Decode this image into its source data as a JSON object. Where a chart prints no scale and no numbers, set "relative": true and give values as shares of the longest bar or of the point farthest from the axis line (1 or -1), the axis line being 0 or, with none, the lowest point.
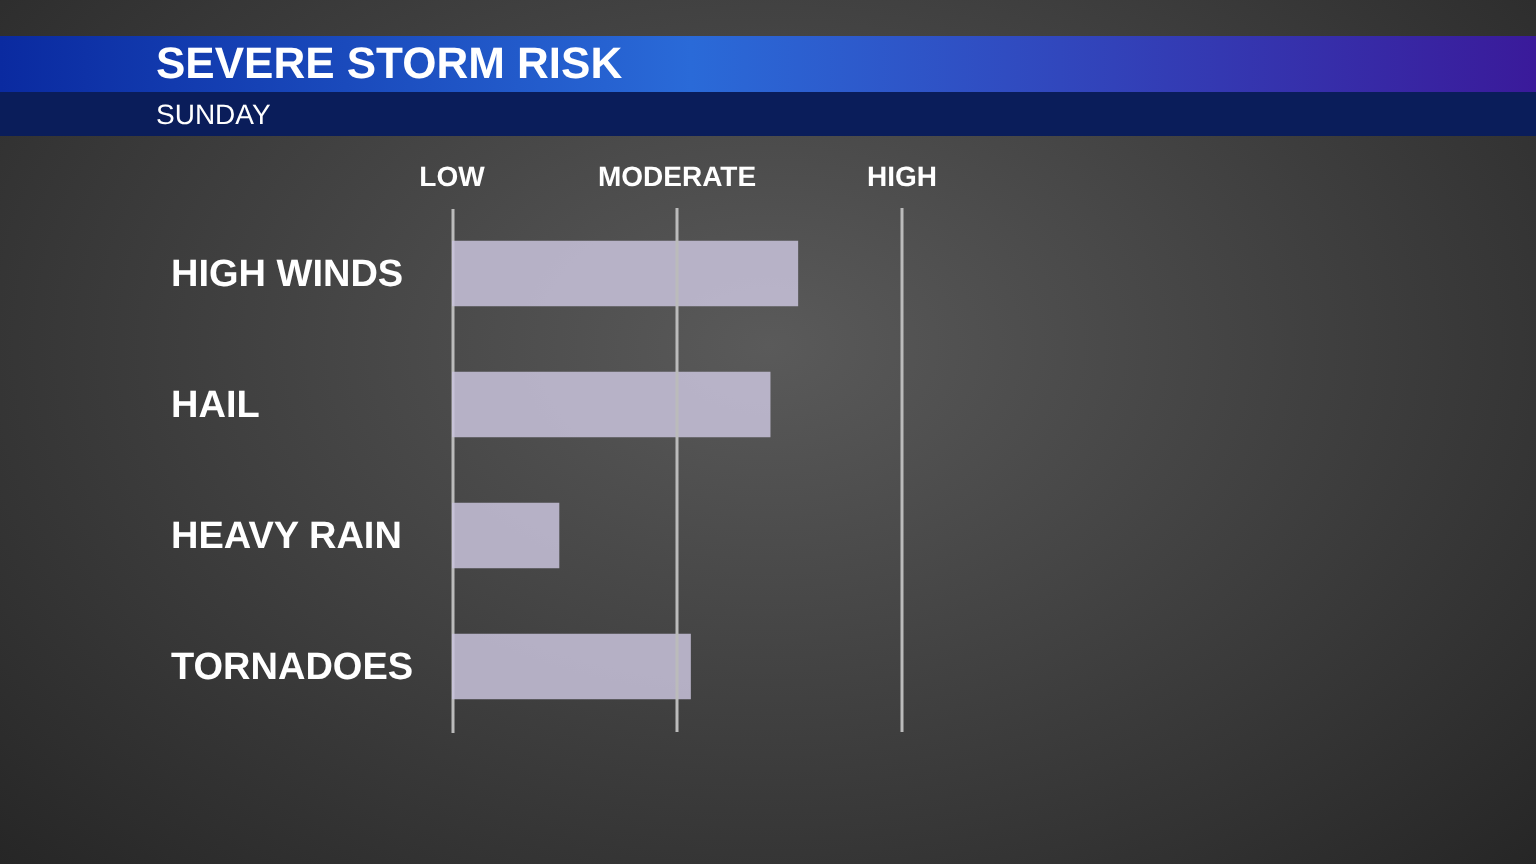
{
  "chart_data": {
    "type": "bar",
    "title": "SEVERE STORM RISK",
    "subtitle": "SUNDAY",
    "orientation": "horizontal",
    "relative": true,
    "categories": [
      "HIGH WINDS",
      "HAIL",
      "HEAVY RAIN",
      "TORNADOES"
    ],
    "values": [
      1,
      0.92,
      0.31,
      0.69
    ],
    "color": "#c9c3dc",
    "annotations": [
      "LOW"
    ],
    "ref_lines": [
      {
        "axis": "x",
        "value": 0.65,
        "label": "MODERATE",
        "color": "#bbbbbb"
      },
      {
        "axis": "x",
        "value": 1.3,
        "label": "HIGH",
        "color": "#bbbbbb"
      }
    ]
  }
}
